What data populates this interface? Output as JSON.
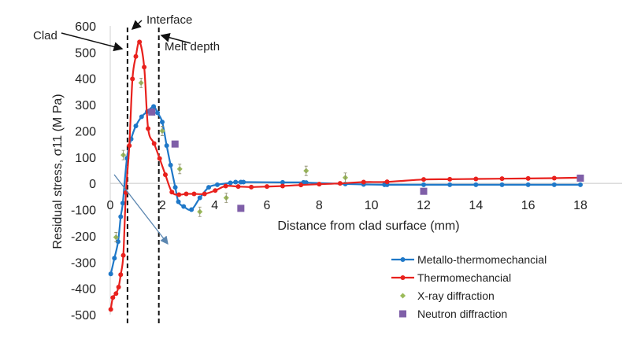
{
  "chart_data": {
    "type": "line",
    "xlabel": "Distance from clad surface (mm)",
    "ylabel": "Residual stress, σ11 (M Pa)",
    "xlim": [
      0,
      18
    ],
    "ylim": [
      -500,
      600
    ],
    "xticks": [
      0,
      2,
      4,
      6,
      8,
      10,
      12,
      14,
      16,
      18
    ],
    "yticks": [
      600,
      500,
      400,
      300,
      200,
      100,
      0,
      -100,
      -200,
      -300,
      -400,
      -500
    ],
    "grid": false,
    "legend_position": "bottom-right",
    "annotations": {
      "clad": "Clad",
      "interface": "Interface",
      "melt_depth": "Melt depth",
      "interface_x": 0.66,
      "melt_depth_x": 1.86
    },
    "series": [
      {
        "name": "Metallo-thermomechancial",
        "type": "line",
        "color": "#1f78c8",
        "x": [
          0.02,
          0.16,
          0.3,
          0.4,
          0.48,
          0.64,
          0.8,
          0.98,
          1.2,
          1.42,
          1.66,
          1.81,
          1.99,
          2.16,
          2.31,
          2.49,
          2.61,
          2.81,
          3.11,
          3.43,
          3.77,
          4.1,
          4.6,
          4.8,
          5.0,
          5.1,
          6.6,
          7.4,
          7.5,
          9.0,
          9.7,
          10.5,
          10.6,
          12,
          13,
          14,
          15,
          16,
          17,
          18
        ],
        "y": [
          -345,
          -285,
          -222,
          -127,
          -75,
          96,
          169,
          219,
          254,
          274,
          293,
          269,
          234,
          144,
          70,
          -15,
          -70,
          -88,
          -100,
          -55,
          -15,
          -5,
          2,
          5,
          5,
          5,
          4,
          4,
          3,
          -2,
          -4,
          -5,
          -5,
          -5,
          -5,
          -5,
          -5,
          -5,
          -5,
          -5
        ]
      },
      {
        "name": "Thermomechancial",
        "type": "line",
        "color": "#e8211d",
        "x": [
          0.02,
          0.1,
          0.22,
          0.32,
          0.4,
          0.5,
          0.6,
          0.73,
          0.85,
          0.98,
          1.12,
          1.3,
          1.45,
          1.68,
          1.89,
          2.11,
          2.36,
          2.63,
          2.91,
          3.21,
          3.61,
          4.02,
          4.42,
          4.9,
          5.4,
          6.0,
          6.6,
          7.3,
          8.0,
          8.8,
          9.7,
          10.6,
          12,
          13,
          14,
          15,
          16,
          17,
          18
        ],
        "y": [
          -480,
          -435,
          -420,
          -395,
          -348,
          -274,
          -35,
          144,
          398,
          484,
          539,
          443,
          209,
          152,
          95,
          33,
          -33,
          -43,
          -40,
          -40,
          -40,
          -27,
          -10,
          -12,
          -14,
          -12,
          -10,
          -6,
          -3,
          0,
          5,
          6,
          15,
          16,
          17,
          18,
          19,
          20,
          22
        ]
      },
      {
        "name": "X-ray diffraction",
        "type": "scatter",
        "color": "#9bbb59",
        "x": [
          0.22,
          0.5,
          1.18,
          1.99,
          2.66,
          3.43,
          4.44,
          7.5,
          9.0
        ],
        "y": [
          -205,
          108,
          383,
          200,
          55,
          -108,
          -55,
          48,
          22
        ]
      },
      {
        "name": "Neutron diffraction",
        "type": "scatter",
        "color": "#7f5fa8",
        "x": [
          1.59,
          2.48,
          5.0,
          12,
          18
        ],
        "y": [
          272,
          150,
          -95,
          -30,
          20
        ]
      }
    ]
  }
}
